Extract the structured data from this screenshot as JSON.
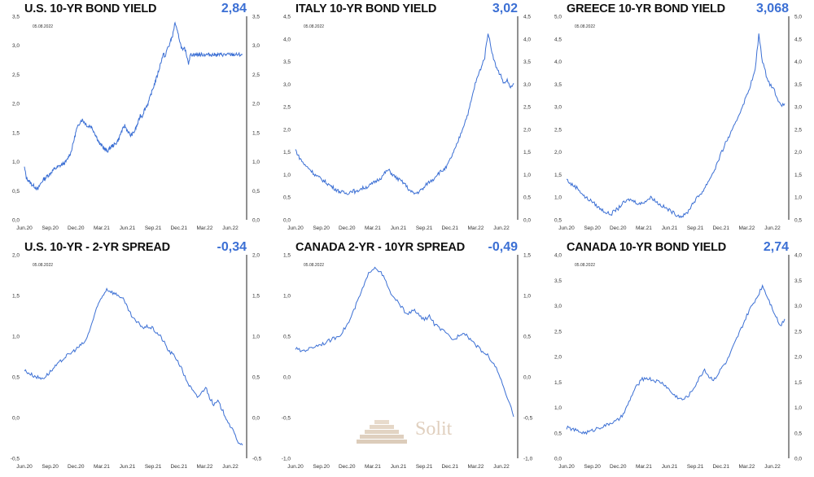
{
  "panels": [
    {
      "title": "U.S. 10-YR BOND YIELD",
      "value": "2,84",
      "date": "05.08.2022"
    },
    {
      "title": "ITALY 10-YR BOND YIELD",
      "value": "3,02",
      "date": "05.08.2022"
    },
    {
      "title": "GREECE 10-YR BOND YIELD",
      "value": "3,068",
      "date": "05.08.2022"
    },
    {
      "title": "U.S. 10-YR - 2-YR SPREAD",
      "value": "-0,34",
      "date": "05.08.2022"
    },
    {
      "title": "CANADA 2-YR - 10YR SPREAD",
      "value": "-0,49",
      "date": "05.08.2022"
    },
    {
      "title": "CANADA 10-YR BOND YIELD",
      "value": "2,74",
      "date": "05.08.2022"
    }
  ],
  "logo": {
    "text": "Solit"
  },
  "colors": {
    "line": "#3b6fd4",
    "value": "#3b6fd4",
    "logo": "#c7a98a"
  },
  "chart_data": [
    {
      "type": "line",
      "title": "U.S. 10-YR BOND YIELD",
      "ylim": [
        0,
        3.5
      ],
      "yticks": [
        "0,0",
        "0,5",
        "1,0",
        "1,5",
        "2,0",
        "2,5",
        "3,0",
        "3,5"
      ],
      "xticks": [
        "Jun.20",
        "Sep.20",
        "Dec.20",
        "Mar.21",
        "Jun.21",
        "Sep.21",
        "Dec.21",
        "Mar.22",
        "Jun.22"
      ],
      "x": [
        0,
        1,
        2,
        3,
        4,
        5,
        6,
        7,
        8,
        9,
        10,
        11,
        12,
        13,
        14,
        15,
        16,
        17,
        18,
        19,
        20,
        21,
        22,
        23,
        24,
        25,
        26,
        27,
        28,
        29,
        30,
        31,
        32,
        33,
        34,
        35,
        36,
        37,
        38,
        39,
        40,
        41,
        42,
        43,
        44,
        45,
        46,
        47,
        48,
        49,
        50,
        51,
        52,
        53,
        54,
        55,
        56,
        57,
        58,
        59,
        60,
        61,
        62,
        63,
        64,
        65,
        66,
        67,
        68,
        69,
        70,
        71,
        72,
        73,
        74,
        75,
        76,
        77,
        78,
        79,
        80,
        81,
        82,
        83,
        84,
        85,
        86,
        87,
        88,
        89,
        90,
        91,
        92,
        93,
        94,
        95,
        96,
        97,
        98,
        99,
        100,
        101,
        102,
        103,
        104,
        105,
        106,
        107,
        108,
        109,
        110,
        111,
        112,
        113
      ],
      "values": [
        0.9,
        0.72,
        0.68,
        0.64,
        0.6,
        0.58,
        0.55,
        0.52,
        0.6,
        0.65,
        0.7,
        0.72,
        0.76,
        0.78,
        0.82,
        0.86,
        0.88,
        0.9,
        0.92,
        0.94,
        0.96,
        0.98,
        1.02,
        1.1,
        1.15,
        1.28,
        1.42,
        1.55,
        1.62,
        1.7,
        1.72,
        1.68,
        1.64,
        1.6,
        1.62,
        1.58,
        1.52,
        1.45,
        1.38,
        1.3,
        1.28,
        1.24,
        1.2,
        1.18,
        1.22,
        1.26,
        1.28,
        1.3,
        1.34,
        1.4,
        1.5,
        1.56,
        1.62,
        1.55,
        1.5,
        1.45,
        1.48,
        1.52,
        1.6,
        1.68,
        1.8,
        1.78,
        1.88,
        1.94,
        2.0,
        2.1,
        2.2,
        2.3,
        2.4,
        2.5,
        2.62,
        2.75,
        2.85,
        2.8,
        2.95,
        3.0,
        3.1,
        3.2,
        3.4,
        3.25,
        3.15,
        3.0,
        2.9,
        2.95,
        2.84,
        2.7,
        2.84,
        2.84,
        2.84,
        2.84,
        2.84,
        2.84,
        2.84,
        2.84,
        2.84,
        2.84,
        2.84,
        2.84,
        2.84,
        2.84,
        2.84,
        2.84,
        2.84,
        2.84,
        2.84,
        2.84,
        2.84,
        2.84,
        2.84,
        2.84,
        2.84,
        2.84,
        2.84,
        2.84
      ]
    },
    {
      "type": "line",
      "title": "ITALY 10-YR BOND YIELD",
      "ylim": [
        0,
        4.5
      ],
      "yticks": [
        "0,0",
        "0,5",
        "1,0",
        "1,5",
        "2,0",
        "2,5",
        "3,0",
        "3,5",
        "4,0",
        "4,5"
      ],
      "xticks": [
        "Jun.20",
        "Sep.20",
        "Dec.20",
        "Mar.21",
        "Jun.21",
        "Sep.21",
        "Dec.21",
        "Mar.22",
        "Jun.22"
      ],
      "values": [
        1.55,
        1.4,
        1.3,
        1.2,
        1.15,
        1.08,
        1.0,
        0.95,
        0.9,
        0.85,
        0.8,
        0.75,
        0.7,
        0.65,
        0.62,
        0.6,
        0.58,
        0.62,
        0.65,
        0.6,
        0.68,
        0.7,
        0.72,
        0.75,
        0.8,
        0.85,
        0.9,
        0.95,
        1.05,
        1.1,
        1.02,
        0.95,
        0.9,
        0.85,
        0.8,
        0.7,
        0.62,
        0.58,
        0.6,
        0.65,
        0.7,
        0.8,
        0.85,
        0.9,
        1.0,
        1.05,
        1.1,
        1.15,
        1.3,
        1.45,
        1.6,
        1.8,
        2.0,
        2.2,
        2.4,
        2.7,
        3.0,
        3.2,
        3.4,
        3.6,
        4.15,
        3.8,
        3.5,
        3.3,
        3.2,
        3.0,
        3.1,
        2.9,
        3.02
      ]
    },
    {
      "type": "line",
      "title": "GREECE 10-YR BOND YIELD",
      "ylim": [
        0.5,
        5.0
      ],
      "yticks": [
        "0,5",
        "1,0",
        "1,5",
        "2,0",
        "2,5",
        "3,0",
        "3,5",
        "4,0",
        "4,5",
        "5,0"
      ],
      "xticks": [
        "Jun.20",
        "Sep.20",
        "Dec.20",
        "Mar.21",
        "Jun.21",
        "Sep.21",
        "Dec.21",
        "Mar.22",
        "Jun.22"
      ],
      "values": [
        1.4,
        1.3,
        1.25,
        1.2,
        1.1,
        1.0,
        0.95,
        0.9,
        0.82,
        0.75,
        0.7,
        0.65,
        0.62,
        0.7,
        0.75,
        0.85,
        0.9,
        0.95,
        0.92,
        0.88,
        0.85,
        0.9,
        0.95,
        1.0,
        0.92,
        0.85,
        0.8,
        0.75,
        0.7,
        0.65,
        0.6,
        0.58,
        0.6,
        0.7,
        0.85,
        0.95,
        1.05,
        1.15,
        1.3,
        1.45,
        1.6,
        1.8,
        2.0,
        2.2,
        2.35,
        2.5,
        2.7,
        2.9,
        3.1,
        3.3,
        3.55,
        3.8,
        4.6,
        4.0,
        3.7,
        3.5,
        3.4,
        3.2,
        3.0,
        3.068
      ]
    },
    {
      "type": "line",
      "title": "U.S. 10-YR - 2-YR SPREAD",
      "ylim": [
        -0.5,
        2.0
      ],
      "yticks": [
        "-0,5",
        "0,0",
        "0,5",
        "1,0",
        "1,5",
        "2,0"
      ],
      "xticks": [
        "Jun.20",
        "Sep.20",
        "Dec.20",
        "Mar.21",
        "Jun.21",
        "Sep.21",
        "Dec.21",
        "Mar.22",
        "Jun.22"
      ],
      "values": [
        0.58,
        0.55,
        0.52,
        0.5,
        0.48,
        0.5,
        0.55,
        0.6,
        0.65,
        0.7,
        0.75,
        0.78,
        0.82,
        0.86,
        0.9,
        0.95,
        1.1,
        1.25,
        1.4,
        1.5,
        1.58,
        1.55,
        1.52,
        1.5,
        1.45,
        1.35,
        1.25,
        1.18,
        1.15,
        1.1,
        1.12,
        1.1,
        1.05,
        1.0,
        0.92,
        0.82,
        0.78,
        0.72,
        0.62,
        0.5,
        0.4,
        0.32,
        0.25,
        0.3,
        0.38,
        0.25,
        0.15,
        0.2,
        0.1,
        0.0,
        -0.1,
        -0.2,
        -0.3,
        -0.34
      ]
    },
    {
      "type": "line",
      "title": "CANADA 2-YR - 10YR SPREAD",
      "ylim": [
        -1.0,
        1.5
      ],
      "yticks": [
        "-1,0",
        "-0,5",
        "0,0",
        "0,5",
        "1,0",
        "1,5"
      ],
      "xticks": [
        "Jun.20",
        "Sep.20",
        "Dec.20",
        "Mar.21",
        "Jun.21",
        "Sep.21",
        "Dec.21",
        "Mar.22",
        "Jun.22"
      ],
      "values": [
        0.35,
        0.32,
        0.33,
        0.35,
        0.38,
        0.4,
        0.42,
        0.45,
        0.48,
        0.52,
        0.6,
        0.7,
        0.85,
        1.0,
        1.15,
        1.3,
        1.35,
        1.3,
        1.2,
        1.05,
        0.95,
        0.9,
        0.8,
        0.78,
        0.82,
        0.75,
        0.7,
        0.75,
        0.65,
        0.6,
        0.55,
        0.5,
        0.45,
        0.52,
        0.55,
        0.48,
        0.42,
        0.35,
        0.3,
        0.25,
        0.15,
        0.05,
        -0.15,
        -0.3,
        -0.49
      ]
    },
    {
      "type": "line",
      "title": "CANADA 10-YR BOND YIELD",
      "ylim": [
        0,
        4.0
      ],
      "yticks": [
        "0,0",
        "0,5",
        "1,0",
        "1,5",
        "2,0",
        "2,5",
        "3,0",
        "3,5",
        "4,0"
      ],
      "xticks": [
        "Jun.20",
        "Sep.20",
        "Dec.20",
        "Mar.21",
        "Jun.21",
        "Sep.21",
        "Dec.21",
        "Mar.22",
        "Jun.22"
      ],
      "values": [
        0.6,
        0.58,
        0.55,
        0.52,
        0.5,
        0.52,
        0.55,
        0.6,
        0.62,
        0.65,
        0.7,
        0.72,
        0.78,
        0.9,
        1.1,
        1.3,
        1.45,
        1.55,
        1.58,
        1.55,
        1.52,
        1.5,
        1.45,
        1.35,
        1.25,
        1.2,
        1.15,
        1.2,
        1.3,
        1.45,
        1.6,
        1.75,
        1.6,
        1.55,
        1.65,
        1.8,
        1.9,
        2.1,
        2.3,
        2.5,
        2.7,
        2.9,
        3.05,
        3.2,
        3.4,
        3.2,
        3.0,
        2.8,
        2.6,
        2.74
      ]
    }
  ]
}
